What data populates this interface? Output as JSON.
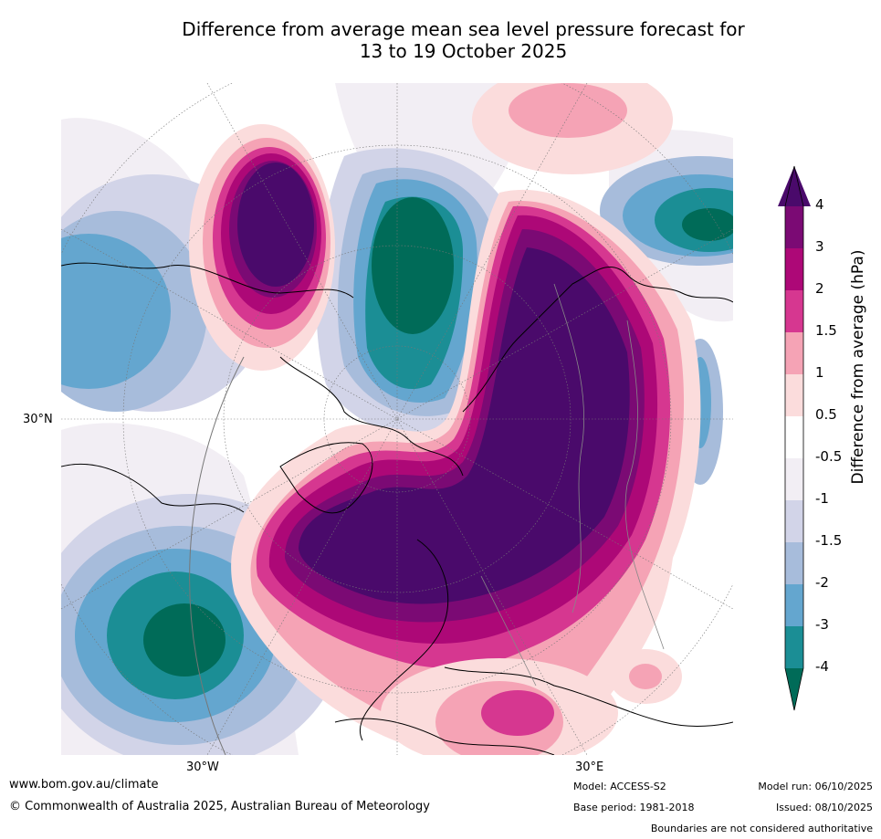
{
  "title_line1": "Difference from average mean sea level pressure forecast for",
  "title_line2": "13 to 19 October 2025",
  "map": {
    "lat_label": "30°N",
    "lon_labels": [
      "30°W",
      "30°E"
    ]
  },
  "colorbar": {
    "title": "Difference from average (hPa)",
    "ticks": [
      "4",
      "3",
      "2",
      "1.5",
      "1",
      "0.5",
      "-0.5",
      "-1",
      "-1.5",
      "-2",
      "-3",
      "-4"
    ],
    "colors": {
      "over4": "#4a0a6b",
      "b3_4": "#7b0a74",
      "b2_3": "#ad0877",
      "b15_2": "#d63790",
      "b1_15": "#f5a3b5",
      "b05_1": "#fbdcdc",
      "b_neutral": "#ffffff",
      "bm1_m05": "#f2eef4",
      "bm15_m1": "#d2d4e8",
      "bm2_m15": "#a7bcdb",
      "bm3_m2": "#64a6cf",
      "bm4_m3": "#1b8e95",
      "under4": "#006b58"
    }
  },
  "footer": {
    "url": "www.bom.gov.au/climate",
    "copyright": "© Commonwealth of Australia 2025, Australian Bureau of Meteorology",
    "model": "Model: ACCESS-S2",
    "base_period": "Base period: 1981-2018",
    "model_run": "Model run: 06/10/2025",
    "issued": "Issued: 08/10/2025",
    "disclaimer": "Boundaries are not considered authoritative"
  }
}
